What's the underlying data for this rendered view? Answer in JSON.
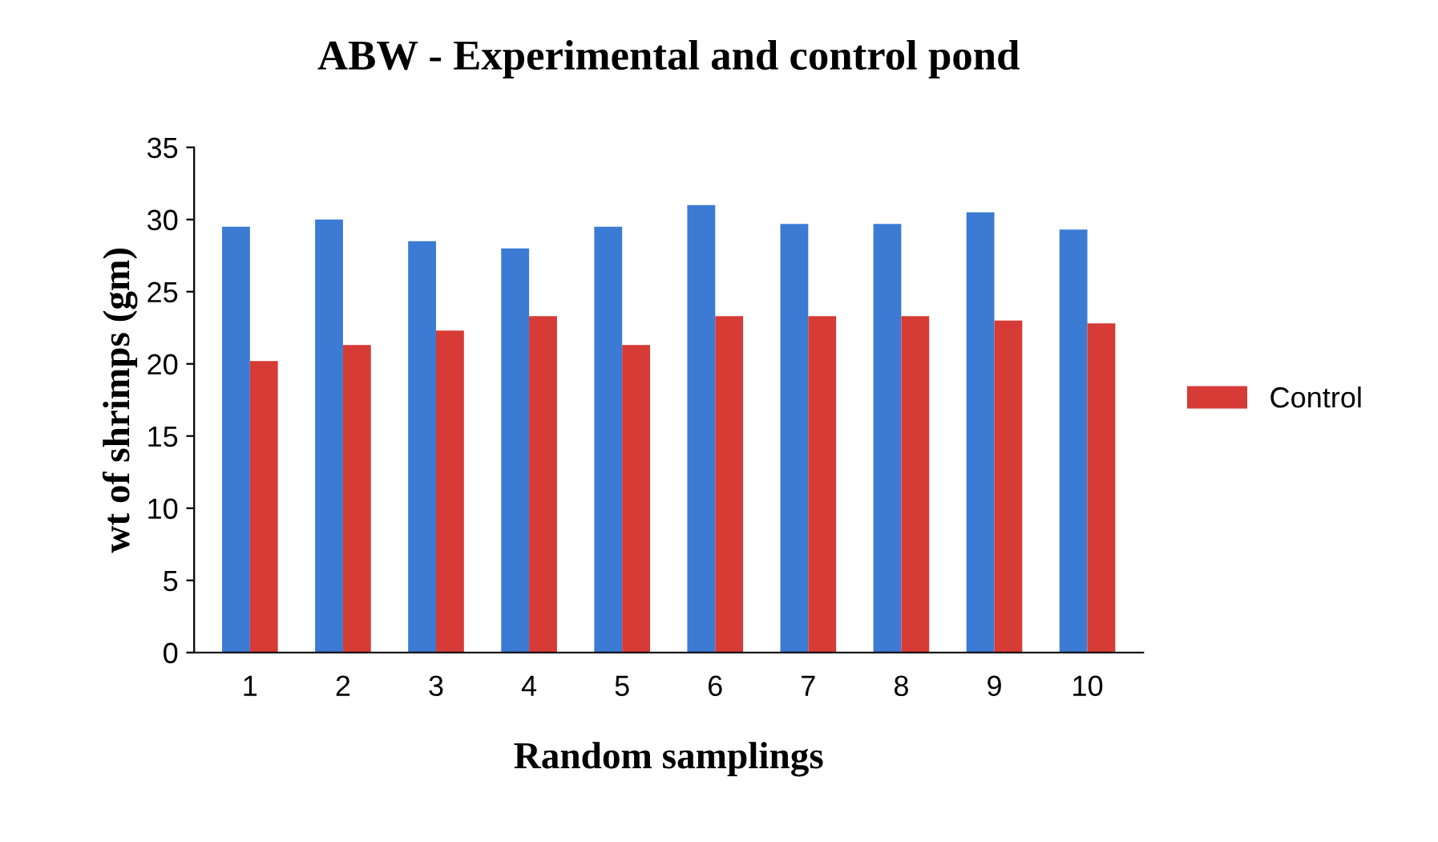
{
  "chart_data": {
    "type": "bar",
    "title": "ABW - Experimental and control pond",
    "xlabel": "Random samplings",
    "ylabel": "wt of shrimps (gm)",
    "categories": [
      "1",
      "2",
      "3",
      "4",
      "5",
      "6",
      "7",
      "8",
      "9",
      "10"
    ],
    "series": [
      {
        "color": "#3b7bd4",
        "values": [
          29.5,
          30,
          28.5,
          28,
          29.5,
          31,
          29.7,
          29.7,
          30.5,
          29.3
        ]
      },
      {
        "name": "Control",
        "color": "#d63b36",
        "values": [
          20.2,
          21.3,
          22.3,
          23.3,
          21.3,
          23.3,
          23.3,
          23.3,
          23,
          22.8
        ]
      }
    ],
    "ylim": [
      0,
      35
    ],
    "yticks": [
      0,
      5,
      10,
      15,
      20,
      25,
      30,
      35
    ],
    "grid": false,
    "legend": "right"
  }
}
